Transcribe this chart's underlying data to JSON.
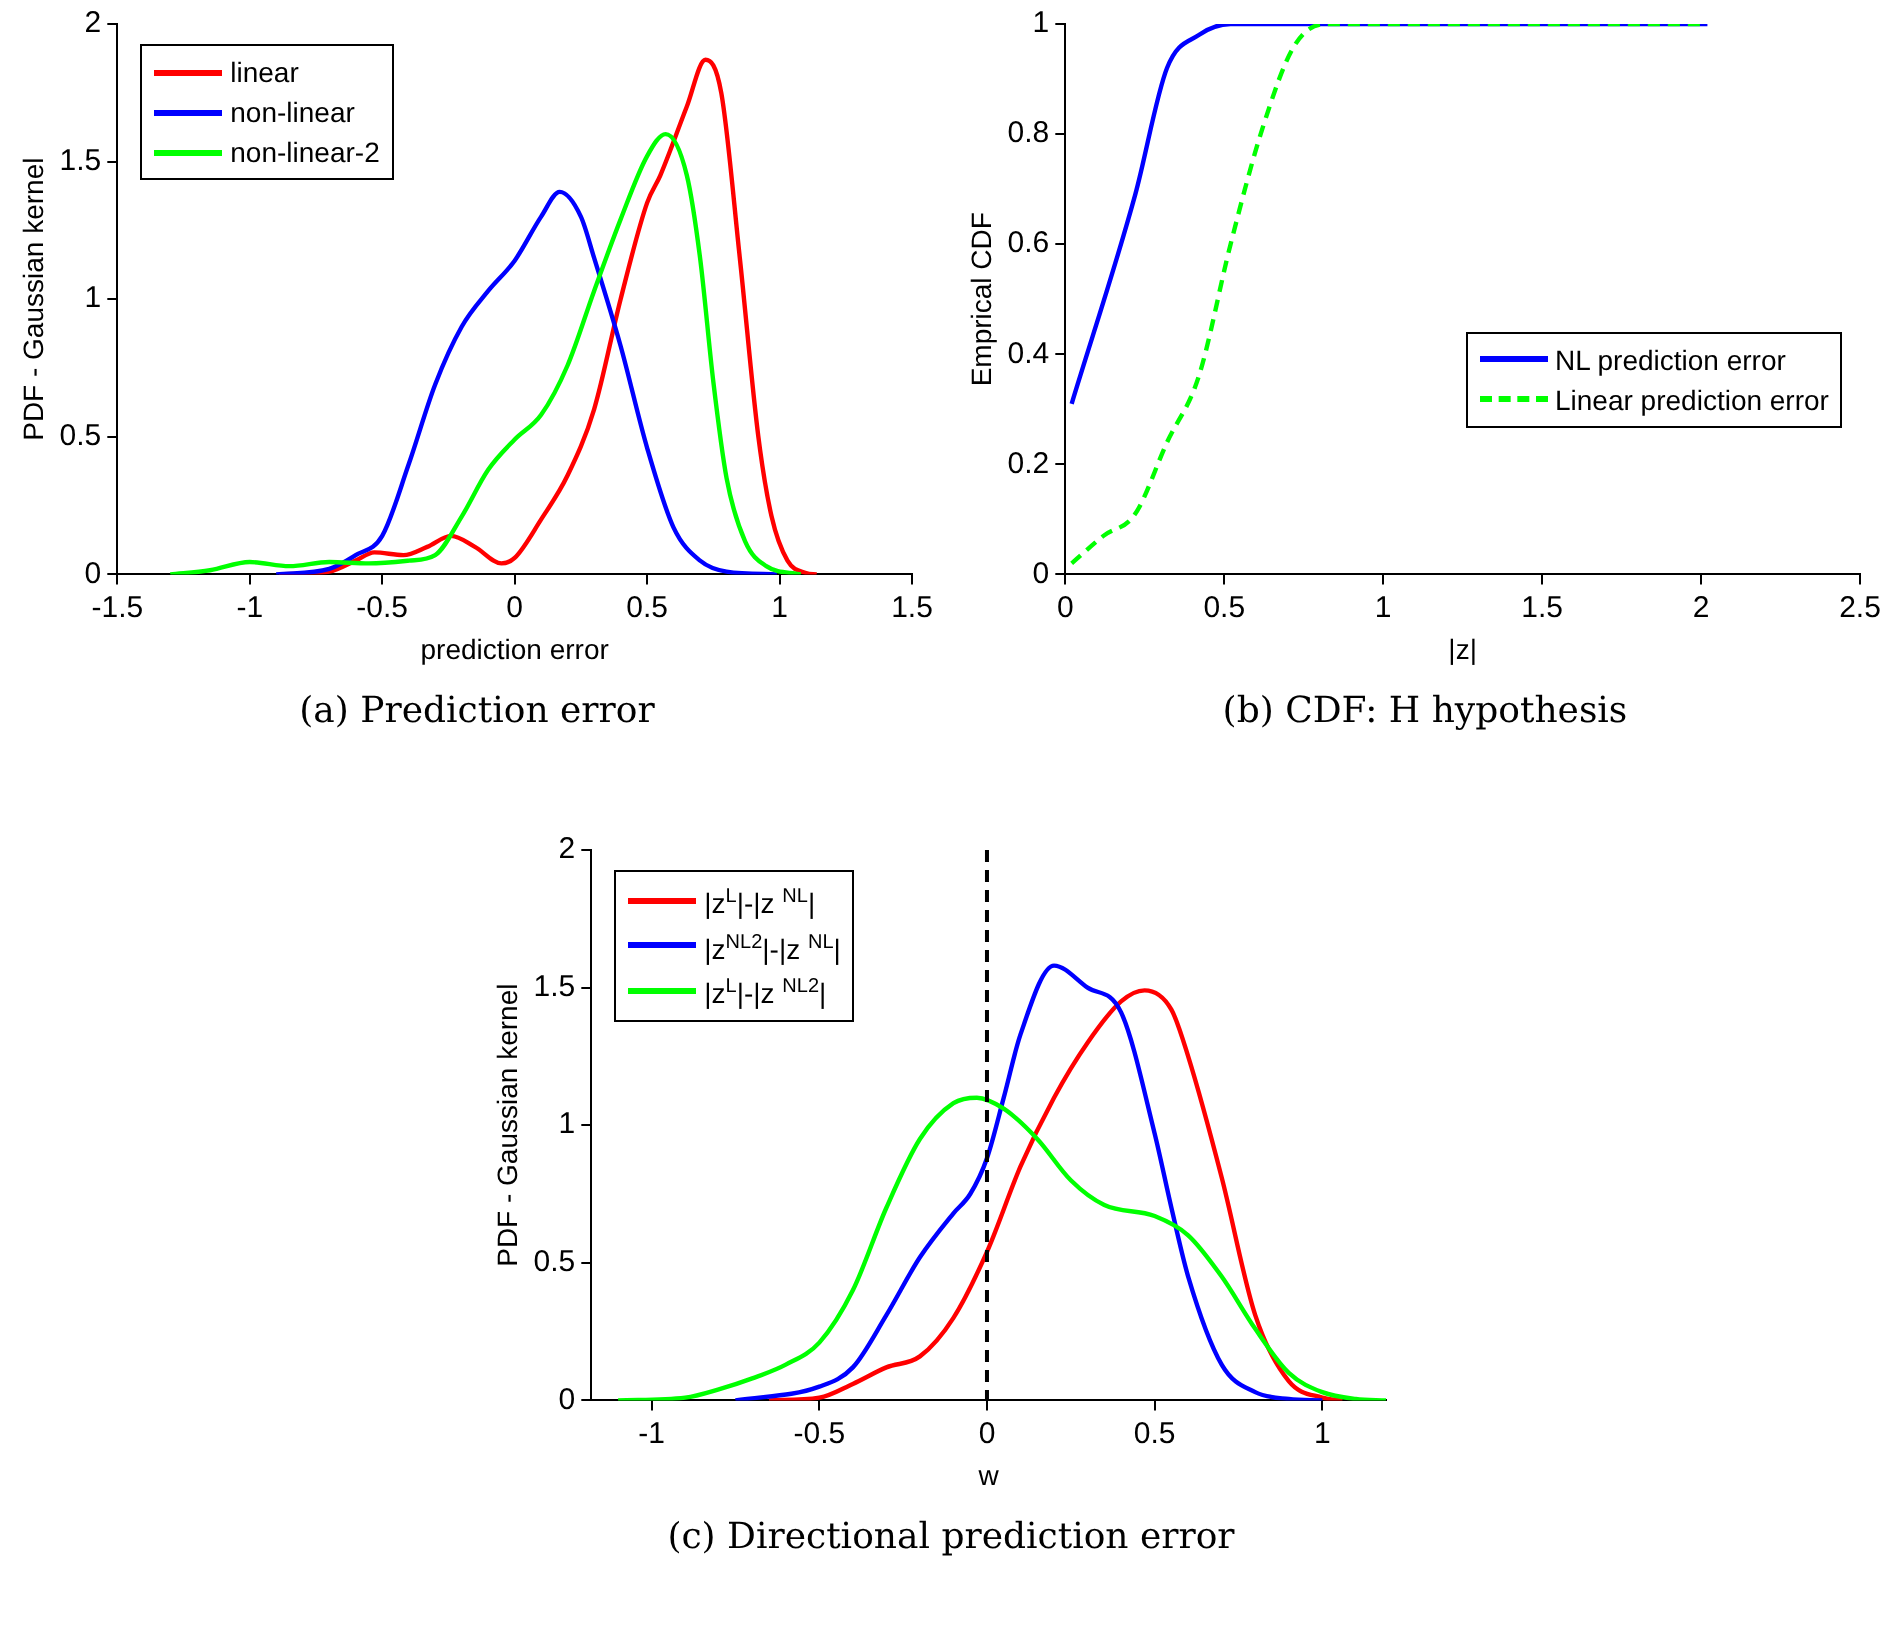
{
  "chart_data": [
    {
      "type": "line",
      "xlabel": "prediction error",
      "ylabel": "PDF - Gaussian kernel",
      "annotations": [
        "(a)  Prediction error"
      ],
      "xlim": [
        -1.5,
        1.5
      ],
      "ylim": [
        0,
        2
      ],
      "xticks": [
        -1.5,
        -1,
        -0.5,
        0,
        0.5,
        1,
        1.5
      ],
      "yticks": [
        0,
        0.5,
        1,
        1.5,
        2
      ],
      "grid": false,
      "legend": "top left",
      "marker": "none",
      "line_style": "solid",
      "series": [
        {
          "name": "linear",
          "color": "#ff0000",
          "x": [
            -0.89,
            -0.7,
            -0.6,
            -0.53,
            -0.42,
            -0.33,
            -0.24,
            -0.15,
            -0.05,
            0,
            0.1,
            0.2,
            0.3,
            0.4,
            0.5,
            0.55,
            0.65,
            0.72,
            0.78,
            0.85,
            0.92,
            0.97,
            1.03,
            1.1,
            1.14
          ],
          "values": [
            0,
            0.01,
            0.05,
            0.08,
            0.07,
            0.1,
            0.14,
            0.1,
            0.04,
            0.06,
            0.2,
            0.36,
            0.6,
            1.0,
            1.35,
            1.45,
            1.7,
            1.87,
            1.75,
            1.15,
            0.5,
            0.21,
            0.05,
            0.005,
            0
          ]
        },
        {
          "name": "non-linear",
          "color": "#0000ff",
          "x": [
            -0.9,
            -0.7,
            -0.6,
            -0.5,
            -0.4,
            -0.3,
            -0.2,
            -0.1,
            0,
            0.1,
            0.17,
            0.25,
            0.3,
            0.4,
            0.5,
            0.6,
            0.7,
            0.8,
            0.99
          ],
          "values": [
            0,
            0.02,
            0.07,
            0.14,
            0.4,
            0.69,
            0.9,
            1.03,
            1.14,
            1.3,
            1.39,
            1.3,
            1.15,
            0.83,
            0.46,
            0.17,
            0.05,
            0.01,
            0
          ]
        },
        {
          "name": "non-linear-2",
          "color": "#00ff00",
          "x": [
            -1.3,
            -1.15,
            -1.0,
            -0.85,
            -0.7,
            -0.55,
            -0.4,
            -0.3,
            -0.2,
            -0.1,
            0,
            0.1,
            0.2,
            0.3,
            0.4,
            0.5,
            0.57,
            0.65,
            0.7,
            0.75,
            0.8,
            0.87,
            0.95,
            1.08
          ],
          "values": [
            0,
            0.015,
            0.045,
            0.03,
            0.045,
            0.04,
            0.05,
            0.07,
            0.21,
            0.38,
            0.49,
            0.58,
            0.76,
            1.03,
            1.29,
            1.52,
            1.6,
            1.45,
            1.15,
            0.7,
            0.35,
            0.12,
            0.03,
            0
          ]
        }
      ]
    },
    {
      "type": "line",
      "xlabel": "|z|",
      "ylabel": "Emprical CDF",
      "annotations": [
        "(b)  CDF: H hypothesis"
      ],
      "xlim": [
        0,
        2.5
      ],
      "ylim": [
        0,
        1
      ],
      "xticks": [
        0,
        0.5,
        1,
        1.5,
        2,
        2.5
      ],
      "yticks": [
        0,
        0.2,
        0.4,
        0.6,
        0.8,
        1
      ],
      "grid": false,
      "legend": "right",
      "marker": "none",
      "series": [
        {
          "name": "NL prediction error",
          "color": "#0000ff",
          "line_style": "solid",
          "x": [
            0.02,
            0.22,
            0.32,
            0.42,
            0.52,
            2.02
          ],
          "values": [
            0.31,
            0.69,
            0.92,
            0.98,
            1,
            1
          ]
        },
        {
          "name": "Linear prediction error",
          "color": "#00ff00",
          "line_style": "dashed",
          "x": [
            0.02,
            0.12,
            0.22,
            0.32,
            0.42,
            0.52,
            0.62,
            0.72,
            0.82,
            2.02
          ],
          "values": [
            0.02,
            0.07,
            0.11,
            0.24,
            0.36,
            0.6,
            0.81,
            0.96,
            1,
            1
          ]
        }
      ]
    },
    {
      "type": "line",
      "xlabel": "w",
      "ylabel": "PDF - Gaussian kernel",
      "annotations": [
        "(c)  Directional prediction error"
      ],
      "xlim": [
        -1.18,
        1.19
      ],
      "ylim": [
        0,
        2
      ],
      "xticks": [
        -1,
        -0.5,
        0,
        0.5,
        1
      ],
      "yticks": [
        0,
        0.5,
        1,
        1.5,
        2
      ],
      "grid": false,
      "legend": "top left",
      "marker": "none",
      "line_style": "solid",
      "ref_lines": [
        {
          "axis": "x",
          "value": 0,
          "color": "#000000",
          "line_style": "dashed"
        }
      ],
      "series": [
        {
          "name": "|z$^{L}$|-|z $^{NL}$|",
          "color": "#ff0000",
          "x": [
            -0.65,
            -0.5,
            -0.4,
            -0.3,
            -0.2,
            -0.1,
            0,
            0.1,
            0.2,
            0.3,
            0.4,
            0.47,
            0.55,
            0.6,
            0.7,
            0.8,
            0.9,
            1.0,
            1.06
          ],
          "values": [
            0,
            0.01,
            0.06,
            0.12,
            0.16,
            0.3,
            0.54,
            0.85,
            1.1,
            1.3,
            1.45,
            1.49,
            1.42,
            1.25,
            0.81,
            0.31,
            0.07,
            0.01,
            0
          ]
        },
        {
          "name": "|z$^{NL2}$|-|z $^{NL}$|",
          "color": "#0000ff",
          "x": [
            -0.75,
            -0.5,
            -0.4,
            -0.3,
            -0.2,
            -0.1,
            -0.05,
            0,
            0.05,
            0.1,
            0.2,
            0.3,
            0.4,
            0.5,
            0.55,
            0.6,
            0.7,
            0.8,
            0.9,
            1.0
          ],
          "values": [
            0,
            0.05,
            0.12,
            0.31,
            0.52,
            0.68,
            0.75,
            0.88,
            1.1,
            1.33,
            1.58,
            1.5,
            1.41,
            0.97,
            0.7,
            0.45,
            0.13,
            0.03,
            0.005,
            0
          ]
        },
        {
          "name": "|z$^{L}$|-|z $^{NL2}$|",
          "color": "#00ff00",
          "x": [
            -1.1,
            -0.9,
            -0.8,
            -0.7,
            -0.6,
            -0.5,
            -0.4,
            -0.3,
            -0.2,
            -0.1,
            -0.03,
            0.05,
            0.15,
            0.25,
            0.35,
            0.5,
            0.6,
            0.7,
            0.8,
            0.9,
            1.0,
            1.1,
            1.19
          ],
          "values": [
            0,
            0.01,
            0.04,
            0.08,
            0.13,
            0.21,
            0.4,
            0.7,
            0.95,
            1.08,
            1.1,
            1.06,
            0.95,
            0.8,
            0.71,
            0.67,
            0.6,
            0.45,
            0.26,
            0.1,
            0.03,
            0.005,
            0
          ]
        }
      ]
    }
  ]
}
